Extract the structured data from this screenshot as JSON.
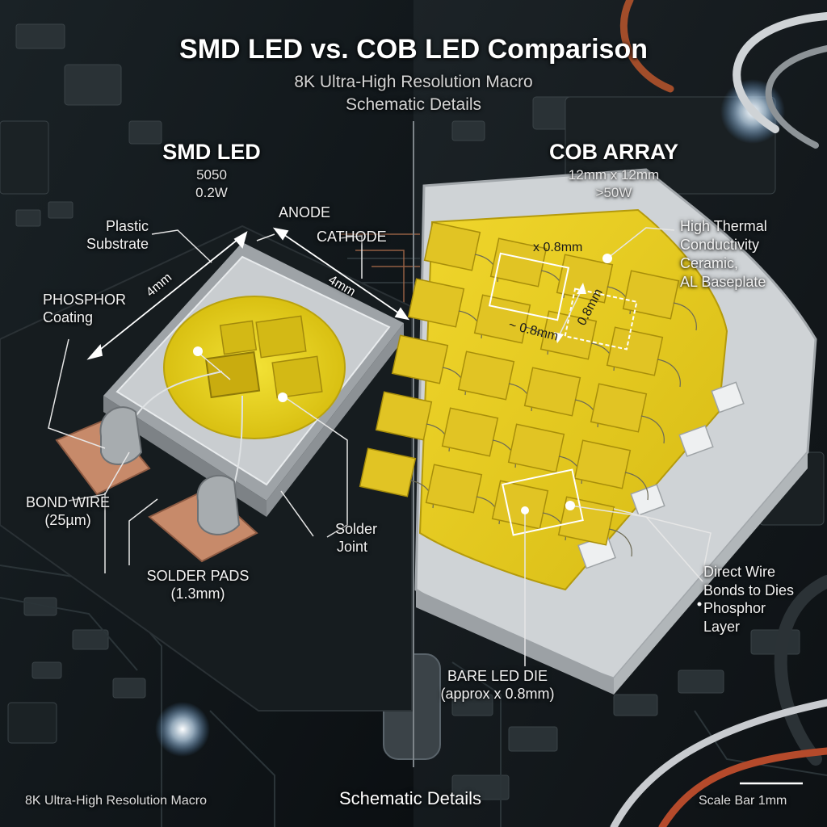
{
  "header": {
    "title": "SMD LED vs. COB LED Comparison",
    "subtitle_line1": "8K Ultra-High Resolution Macro",
    "subtitle_line2": "Schematic Details"
  },
  "smd": {
    "heading": "SMD LED",
    "spec_line1": "5050",
    "spec_line2": "0.2W",
    "labels": {
      "plastic_substrate_1": "Plastic",
      "plastic_substrate_2": "Substrate",
      "anode": "ANODE",
      "cathode": "CATHODE",
      "phosphor_1": "PHOSPHOR",
      "phosphor_2": "Coating",
      "bond_wire_1": "BOND WIRE",
      "bond_wire_2": "(25µm)",
      "solder_pads_1": "SOLDER PADS",
      "solder_pads_2": "(1.3mm)",
      "solder_joint_1": "Solder",
      "solder_joint_2": "Joint",
      "dim_left": "4mm",
      "dim_right": "4mm"
    }
  },
  "cob": {
    "heading": "COB ARRAY",
    "spec_line1": "12mm x 12mm",
    "spec_line2": ">50W",
    "labels": {
      "ceramic_1": "High Thermal",
      "ceramic_2": "Conductivity",
      "ceramic_3": "Ceramic,",
      "ceramic_4": "AL Baseplate",
      "dim_top": "x 0.8mm",
      "dim_side": "0.8mm",
      "dim_bottom": "~ 0.8mm",
      "wire_bonds_1": "Direct Wire",
      "wire_bonds_2": "Bonds to Dies",
      "phosphor_1": "Phosphor",
      "phosphor_2": "Layer",
      "bare_die_1": "BARE LED DIE",
      "bare_die_2": "(approx x 0.8mm)"
    }
  },
  "footer": {
    "left": "8K Ultra-High Resolution Macro",
    "center": "Schematic Details",
    "right": "Scale Bar 1mm"
  },
  "colors": {
    "phosphor_yellow": "#e8d21e",
    "ceramic_white": "#cfd3d6",
    "pcb_dark": "#151b1f",
    "copper_pad": "#c78a6a"
  }
}
